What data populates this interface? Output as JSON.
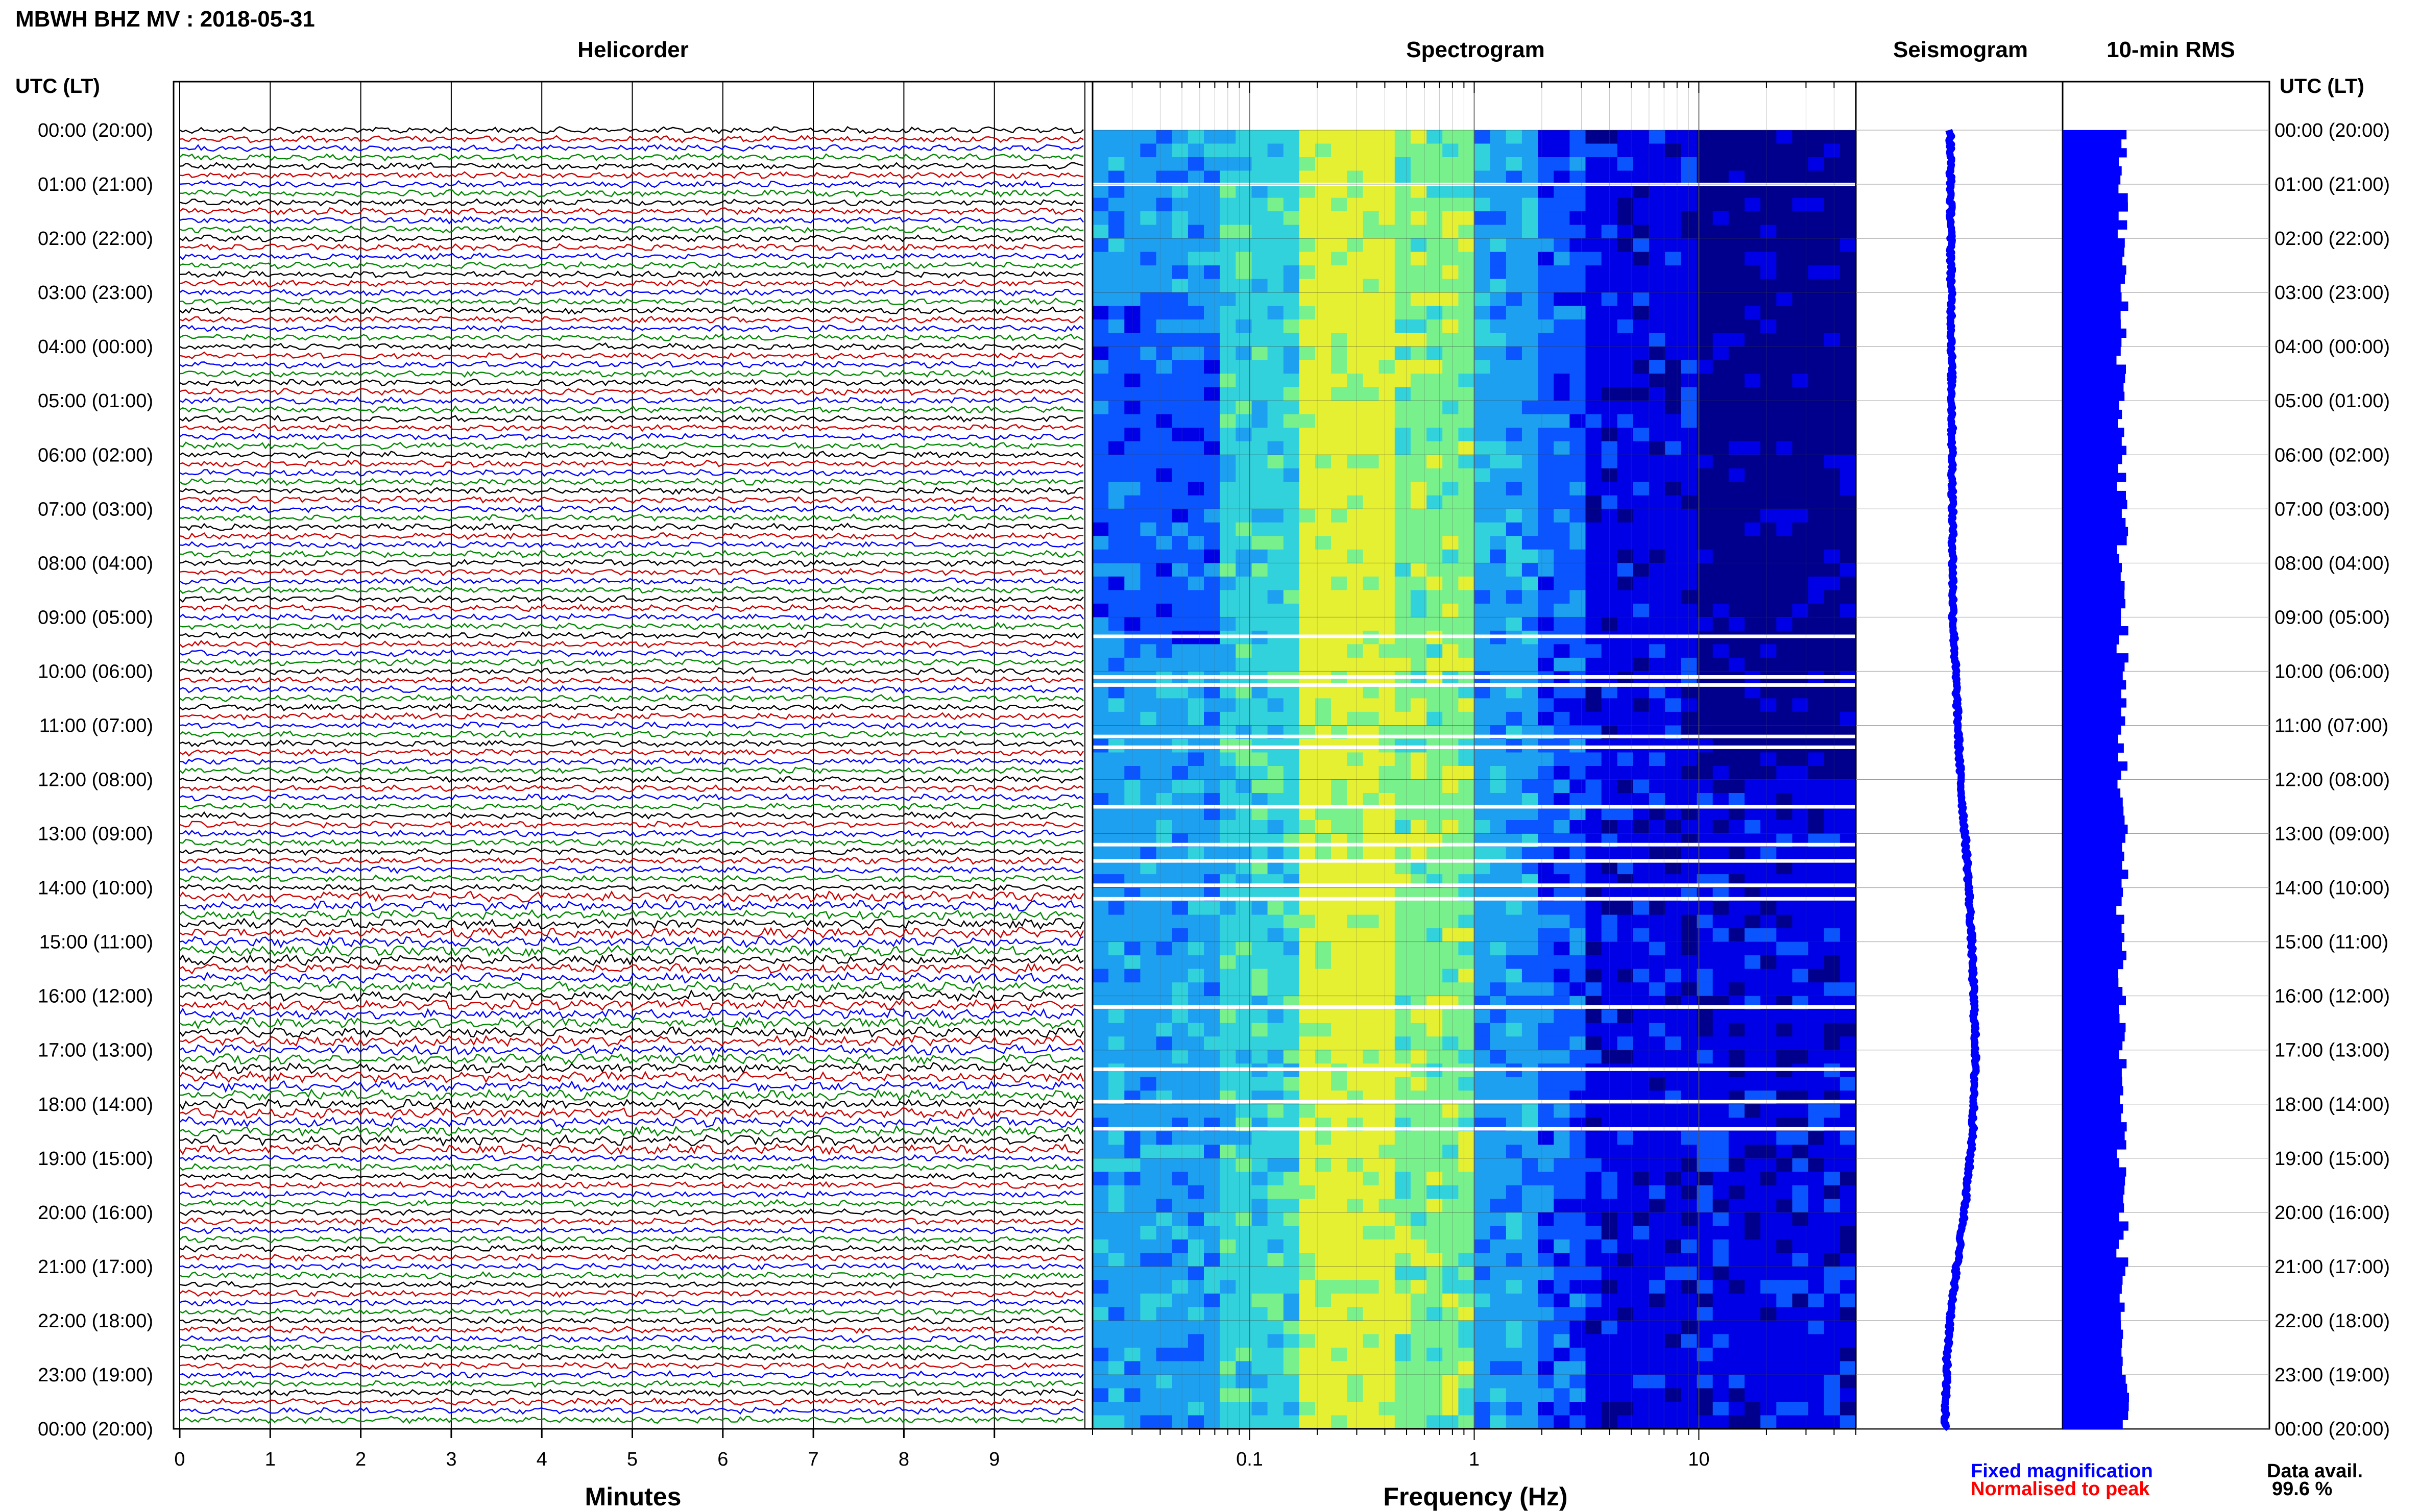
{
  "title": "MBWH BHZ MV : 2018-05-31",
  "panels": {
    "helicorder": "Helicorder",
    "spectrogram": "Spectrogram",
    "seismogram": "Seismogram",
    "rms": "10-min RMS"
  },
  "time_axis_label": "UTC (LT)",
  "time_labels": [
    "00:00 (20:00)",
    "01:00 (21:00)",
    "02:00 (22:00)",
    "03:00 (23:00)",
    "04:00 (00:00)",
    "05:00 (01:00)",
    "06:00 (02:00)",
    "07:00 (03:00)",
    "08:00 (04:00)",
    "09:00 (05:00)",
    "10:00 (06:00)",
    "11:00 (07:00)",
    "12:00 (08:00)",
    "13:00 (09:00)",
    "14:00 (10:00)",
    "15:00 (11:00)",
    "16:00 (12:00)",
    "17:00 (13:00)",
    "18:00 (14:00)",
    "19:00 (15:00)",
    "20:00 (16:00)",
    "21:00 (17:00)",
    "22:00 (18:00)",
    "23:00 (19:00)",
    "00:00 (20:00)"
  ],
  "legend": {
    "fixed": "Fixed magnification",
    "normalised": "Normalised to peak",
    "colors": {
      "fixed": "#0000ff",
      "normalised": "#ff0000"
    }
  },
  "data_avail": {
    "label": "Data avail.",
    "value": "99.6 %"
  },
  "chart_data": [
    {
      "type": "line",
      "name": "helicorder",
      "title": "Helicorder",
      "xlabel": "Minutes",
      "xlim": [
        0,
        10
      ],
      "x_ticks": [
        "0",
        "1",
        "2",
        "3",
        "4",
        "5",
        "6",
        "7",
        "8",
        "9"
      ],
      "traces_per_hour": 6,
      "trace_colors": [
        "#000000",
        "#cc0000",
        "#0000ff",
        "#008800"
      ],
      "grid": true
    },
    {
      "type": "heatmap",
      "name": "spectrogram",
      "title": "Spectrogram",
      "xlabel": "Frequency (Hz)",
      "x_scale": "log",
      "xlim": [
        0.02,
        50
      ],
      "x_ticks": [
        "0.1",
        "1",
        "10"
      ],
      "colormap": [
        "#00008c",
        "#0000e6",
        "#0a55ff",
        "#1ea0f0",
        "#32d2dc",
        "#78f08c",
        "#e6f032"
      ],
      "data_gap_hours": [
        1.0,
        9.35,
        10.1,
        10.25,
        11.2,
        11.4,
        12.5,
        13.2,
        13.5,
        13.95,
        14.2,
        16.2,
        17.35,
        17.95,
        18.45
      ]
    },
    {
      "type": "line",
      "name": "seismogram",
      "title": "Seismogram",
      "series_color": "#0000ff",
      "y": "time (h)",
      "offset_profile": [
        {
          "h": 0,
          "v": 0.0
        },
        {
          "h": 9,
          "v": 0.05
        },
        {
          "h": 12,
          "v": 0.18
        },
        {
          "h": 13.5,
          "v": 0.3
        },
        {
          "h": 15,
          "v": 0.38
        },
        {
          "h": 17,
          "v": 0.45
        },
        {
          "h": 18.5,
          "v": 0.4
        },
        {
          "h": 20,
          "v": 0.25
        },
        {
          "h": 21.5,
          "v": 0.05
        },
        {
          "h": 22.5,
          "v": -0.05
        },
        {
          "h": 24,
          "v": -0.1
        }
      ]
    },
    {
      "type": "bar",
      "name": "rms",
      "title": "10-min RMS",
      "orientation": "horizontal",
      "bar_color": "#0000ff",
      "bins_per_hour": 6,
      "hours": 24
    }
  ]
}
